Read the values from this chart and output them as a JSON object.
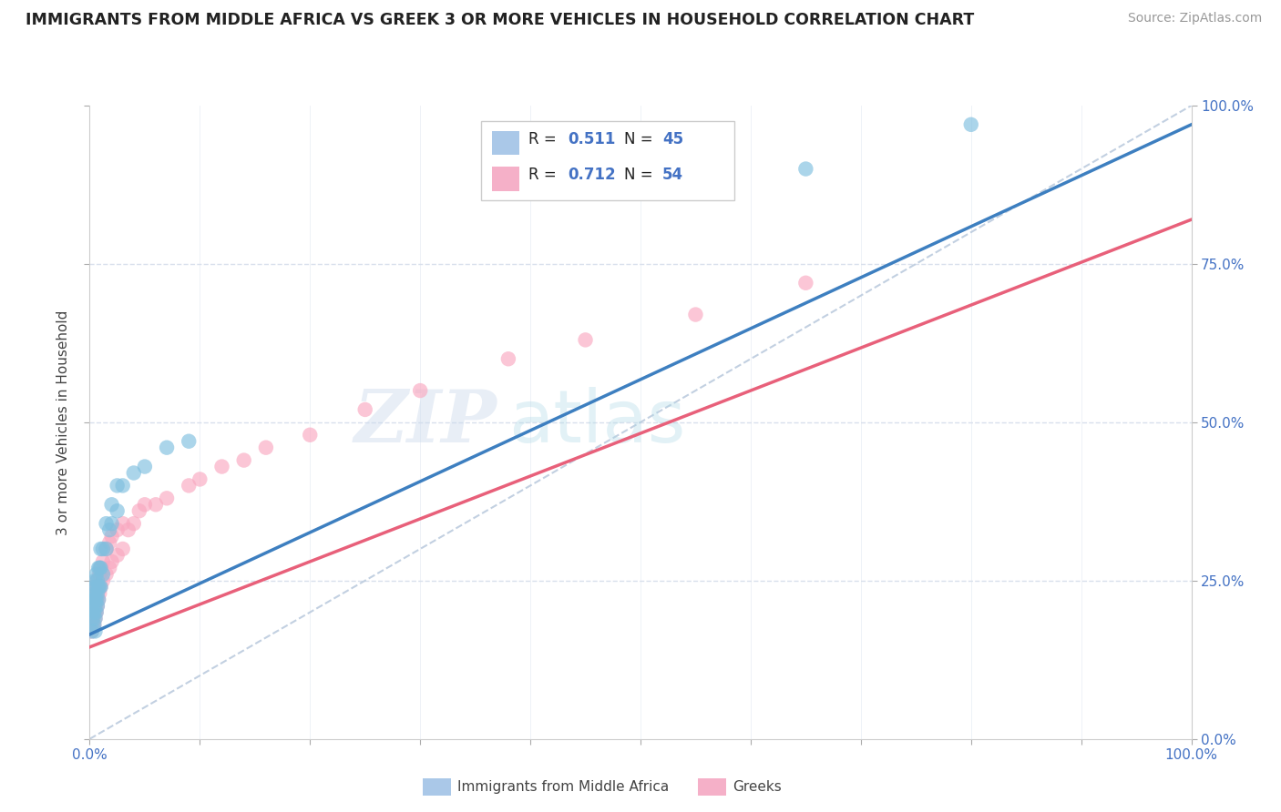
{
  "title": "IMMIGRANTS FROM MIDDLE AFRICA VS GREEK 3 OR MORE VEHICLES IN HOUSEHOLD CORRELATION CHART",
  "source": "Source: ZipAtlas.com",
  "ylabel": "3 or more Vehicles in Household",
  "watermark_zip": "ZIP",
  "watermark_atlas": "atlas",
  "legend_r1": "R = ",
  "legend_v1": "0.511",
  "legend_n1_label": "N = ",
  "legend_n1_val": "45",
  "legend_r2": "R = ",
  "legend_v2": "0.712",
  "legend_n2_label": "N = ",
  "legend_n2_val": "54",
  "color_blue_scatter": "#7fbfdf",
  "color_pink_scatter": "#f9a8c0",
  "color_blue_trend": "#3d7fc0",
  "color_pink_trend": "#e8607a",
  "color_dashed": "#b8c8dc",
  "background_color": "#ffffff",
  "grid_color": "#d8e0ec",
  "xlim": [
    0.0,
    1.0
  ],
  "ylim": [
    0.0,
    1.0
  ],
  "blue_scatter_x": [
    0.002,
    0.003,
    0.003,
    0.003,
    0.004,
    0.004,
    0.004,
    0.004,
    0.005,
    0.005,
    0.005,
    0.005,
    0.005,
    0.005,
    0.006,
    0.006,
    0.006,
    0.006,
    0.007,
    0.007,
    0.007,
    0.008,
    0.008,
    0.008,
    0.009,
    0.009,
    0.01,
    0.01,
    0.01,
    0.012,
    0.012,
    0.015,
    0.015,
    0.018,
    0.02,
    0.02,
    0.025,
    0.025,
    0.03,
    0.04,
    0.05,
    0.07,
    0.09,
    0.65,
    0.8
  ],
  "blue_scatter_y": [
    0.17,
    0.19,
    0.2,
    0.22,
    0.18,
    0.2,
    0.22,
    0.24,
    0.17,
    0.19,
    0.21,
    0.22,
    0.23,
    0.25,
    0.2,
    0.22,
    0.24,
    0.26,
    0.21,
    0.23,
    0.25,
    0.22,
    0.24,
    0.27,
    0.24,
    0.27,
    0.24,
    0.27,
    0.3,
    0.26,
    0.3,
    0.3,
    0.34,
    0.33,
    0.34,
    0.37,
    0.36,
    0.4,
    0.4,
    0.42,
    0.43,
    0.46,
    0.47,
    0.9,
    0.97
  ],
  "pink_scatter_x": [
    0.002,
    0.003,
    0.003,
    0.003,
    0.004,
    0.004,
    0.004,
    0.005,
    0.005,
    0.005,
    0.005,
    0.005,
    0.006,
    0.006,
    0.006,
    0.007,
    0.007,
    0.007,
    0.008,
    0.008,
    0.009,
    0.009,
    0.01,
    0.01,
    0.012,
    0.012,
    0.015,
    0.015,
    0.018,
    0.018,
    0.02,
    0.02,
    0.025,
    0.025,
    0.03,
    0.03,
    0.035,
    0.04,
    0.045,
    0.05,
    0.06,
    0.07,
    0.09,
    0.1,
    0.12,
    0.14,
    0.16,
    0.2,
    0.25,
    0.3,
    0.38,
    0.45,
    0.55,
    0.65
  ],
  "pink_scatter_y": [
    0.17,
    0.18,
    0.19,
    0.2,
    0.18,
    0.2,
    0.21,
    0.19,
    0.2,
    0.21,
    0.22,
    0.24,
    0.2,
    0.22,
    0.24,
    0.21,
    0.23,
    0.25,
    0.22,
    0.24,
    0.23,
    0.26,
    0.24,
    0.27,
    0.25,
    0.28,
    0.26,
    0.3,
    0.27,
    0.31,
    0.28,
    0.32,
    0.29,
    0.33,
    0.3,
    0.34,
    0.33,
    0.34,
    0.36,
    0.37,
    0.37,
    0.38,
    0.4,
    0.41,
    0.43,
    0.44,
    0.46,
    0.48,
    0.52,
    0.55,
    0.6,
    0.63,
    0.67,
    0.72
  ],
  "blue_trend_x": [
    0.0,
    1.0
  ],
  "blue_trend_y": [
    0.165,
    0.97
  ],
  "pink_trend_x": [
    0.0,
    1.0
  ],
  "pink_trend_y": [
    0.145,
    0.82
  ]
}
